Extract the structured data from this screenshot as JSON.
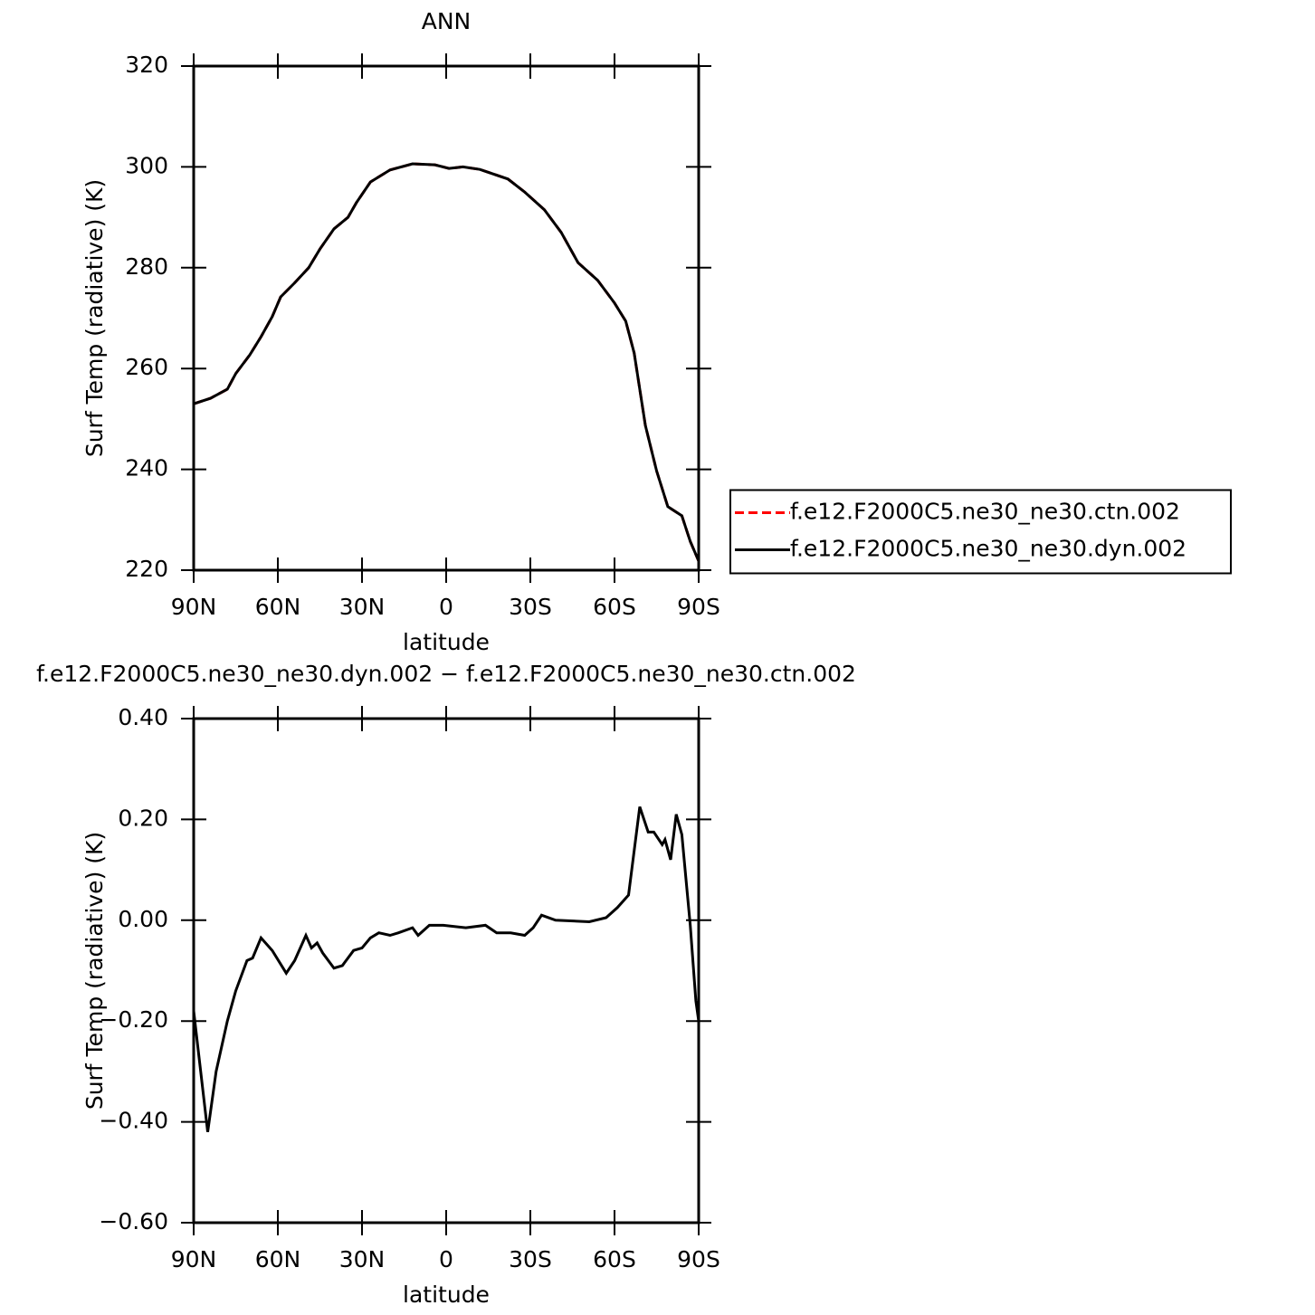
{
  "chart_data": [
    {
      "type": "line",
      "title": "ANN",
      "x_label": "latitude",
      "y_label": "Surf Temp (radiative) (K)",
      "x": [
        90,
        84,
        78,
        75,
        70,
        66,
        62,
        59,
        54,
        49,
        45,
        40,
        35,
        32,
        27,
        20,
        12,
        4,
        -1,
        -6,
        -12,
        -22,
        -28,
        -35,
        -41,
        -47,
        -54,
        -60,
        -64,
        -67,
        -71,
        -75,
        -79,
        -84,
        -87,
        -90
      ],
      "series": [
        {
          "name": "f.e12.F2000C5.ne30_ne30.ctn.002",
          "color": "#ff0000",
          "dash": "dashed",
          "values": [
            253,
            254.1,
            255.9,
            259,
            262.7,
            266.3,
            270.3,
            274.2,
            277,
            280,
            283.7,
            287.7,
            290,
            292.9,
            297,
            299.4,
            300.6,
            300.4,
            299.7,
            300,
            299.5,
            297.6,
            295,
            291.5,
            287,
            281,
            277.5,
            273,
            269.4,
            263.1,
            248.7,
            239.7,
            232.6,
            230.8,
            225.7,
            221.8
          ]
        },
        {
          "name": "f.e12.F2000C5.ne30_ne30.dyn.002",
          "color": "#000000",
          "dash": "solid",
          "values": [
            253,
            254.1,
            255.9,
            259,
            262.7,
            266.3,
            270.3,
            274.2,
            277,
            280,
            283.7,
            287.7,
            290,
            292.9,
            297,
            299.4,
            300.6,
            300.4,
            299.7,
            300,
            299.5,
            297.6,
            295,
            291.5,
            287,
            281,
            277.5,
            273,
            269.4,
            263.1,
            248.7,
            239.7,
            232.6,
            230.8,
            225.7,
            221.8
          ]
        }
      ],
      "xlim": [
        90,
        -90
      ],
      "xticks": [
        {
          "value": 90,
          "label": "90N"
        },
        {
          "value": 60,
          "label": "60N"
        },
        {
          "value": 30,
          "label": "30N"
        },
        0,
        {
          "value": -30,
          "label": "30S"
        },
        {
          "value": -60,
          "label": "60S"
        },
        {
          "value": -90,
          "label": "90S"
        }
      ],
      "ylim": [
        220,
        320
      ],
      "yticks": [
        220,
        240,
        260,
        280,
        300,
        320
      ],
      "legend": "right"
    },
    {
      "type": "line",
      "title": "f.e12.F2000C5.ne30_ne30.dyn.002 − f.e12.F2000C5.ne30_ne30.ctn.002",
      "x_label": "latitude",
      "y_label": "Surf Temp (radiative) (K)",
      "x": [
        90,
        85,
        82,
        78,
        75,
        71,
        69,
        66,
        62,
        57,
        54,
        50,
        48,
        46,
        44,
        40,
        37,
        33,
        30,
        27,
        24,
        20,
        17,
        12,
        10,
        6,
        1,
        -7,
        -14,
        -18,
        -23,
        -28,
        -31,
        -34,
        -39,
        -51,
        -57,
        -61,
        -65,
        -69,
        -72,
        -74,
        -77,
        -78,
        -80,
        -82,
        -84,
        -86,
        -87,
        -89,
        -90
      ],
      "series": [
        {
          "name": "f.e12.F2000C5.ne30_ne30.dyn.002 − f.e12.F2000C5.ne30_ne30.ctn.002",
          "color": "#000000",
          "dash": "solid",
          "values": [
            -0.18,
            -0.42,
            -0.3,
            -0.2,
            -0.14,
            -0.08,
            -0.075,
            -0.035,
            -0.06,
            -0.105,
            -0.08,
            -0.03,
            -0.055,
            -0.045,
            -0.065,
            -0.095,
            -0.09,
            -0.06,
            -0.055,
            -0.035,
            -0.025,
            -0.03,
            -0.025,
            -0.015,
            -0.03,
            -0.01,
            -0.01,
            -0.015,
            -0.01,
            -0.025,
            -0.025,
            -0.03,
            -0.015,
            0.01,
            0.0,
            -0.003,
            0.005,
            0.025,
            0.05,
            0.225,
            0.175,
            0.175,
            0.15,
            0.16,
            0.12,
            0.21,
            0.17,
            0.05,
            -0.01,
            -0.16,
            -0.2
          ]
        }
      ],
      "xlim": [
        90,
        -90
      ],
      "xticks": [
        {
          "value": 90,
          "label": "90N"
        },
        {
          "value": 60,
          "label": "60N"
        },
        {
          "value": 30,
          "label": "30N"
        },
        0,
        {
          "value": -30,
          "label": "30S"
        },
        {
          "value": -60,
          "label": "60S"
        },
        {
          "value": -90,
          "label": "90S"
        }
      ],
      "ylim": [
        -0.6,
        0.4
      ],
      "yticks": [
        {
          "value": -0.6,
          "label": "−0.60"
        },
        {
          "value": -0.4,
          "label": "−0.40"
        },
        {
          "value": -0.2,
          "label": "−0.20"
        },
        {
          "value": 0,
          "label": "0.00"
        },
        {
          "value": 0.2,
          "label": "0.20"
        },
        {
          "value": 0.4,
          "label": "0.40"
        }
      ]
    }
  ]
}
